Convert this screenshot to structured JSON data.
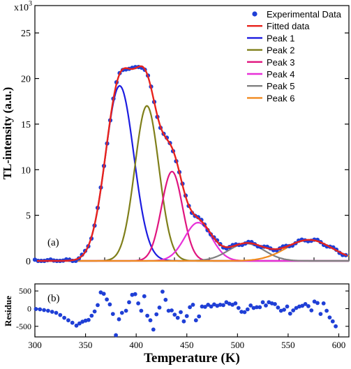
{
  "chart_data": [
    {
      "type": "line",
      "panel_label": "(a)",
      "ylabel": "TL-intensity (a.u.)",
      "y_multiplier_label": "x10",
      "y_multiplier_exp": "3",
      "xlim": [
        300,
        600
      ],
      "ylim": [
        0,
        28
      ],
      "y_ticks": [
        0,
        5,
        10,
        15,
        20,
        25
      ],
      "grid": false,
      "legend_position": "top-right",
      "legend": [
        {
          "label": "Experimental Data",
          "color": "#1f3fd6",
          "marker": "dot"
        },
        {
          "label": "Fitted data",
          "color": "#e8231c",
          "marker": "line"
        },
        {
          "label": "Peak 1",
          "color": "#1c1ce0",
          "marker": "line"
        },
        {
          "label": "Peak 2",
          "color": "#7f7f1a",
          "marker": "line"
        },
        {
          "label": "Peak 3",
          "color": "#e0157f",
          "marker": "line"
        },
        {
          "label": "Peak 4",
          "color": "#e830d8",
          "marker": "line"
        },
        {
          "label": "Peak 5",
          "color": "#808080",
          "marker": "line"
        },
        {
          "label": "Peak 6",
          "color": "#f08a1e",
          "marker": "line"
        }
      ],
      "peaks": [
        {
          "name": "Peak 1",
          "center": 381,
          "height": 19.2,
          "width": 13.5,
          "color": "#1c1ce0"
        },
        {
          "name": "Peak 2",
          "center": 407,
          "height": 17.0,
          "width": 11.5,
          "color": "#7f7f1a"
        },
        {
          "name": "Peak 3",
          "center": 431,
          "height": 9.8,
          "width": 10.0,
          "color": "#e0157f"
        },
        {
          "name": "Peak 4",
          "center": 456,
          "height": 4.2,
          "width": 13.0,
          "color": "#e830d8"
        },
        {
          "name": "Peak 5",
          "center": 502,
          "height": 1.9,
          "width": 17.0,
          "color": "#808080"
        },
        {
          "name": "Peak 6",
          "center": 562,
          "height": 2.3,
          "width": 22.0,
          "color": "#f08a1e"
        }
      ],
      "experimental_x_start": 300,
      "experimental_x_end": 598,
      "experimental_step": 3
    },
    {
      "type": "scatter",
      "panel_label": "(b)",
      "ylabel": "Residue",
      "xlabel": "Temperature (K)",
      "xlim": [
        300,
        610
      ],
      "ylim": [
        -800,
        700
      ],
      "y_ticks": [
        -500,
        0,
        500
      ],
      "x_ticks": [
        300,
        350,
        400,
        450,
        500,
        550,
        600
      ],
      "color": "#1f3fd6",
      "points": [
        [
          301,
          -10
        ],
        [
          305,
          -20
        ],
        [
          309,
          -40
        ],
        [
          313,
          -60
        ],
        [
          317,
          -90
        ],
        [
          321,
          -120
        ],
        [
          325,
          -180
        ],
        [
          329,
          -260
        ],
        [
          333,
          -330
        ],
        [
          337,
          -400
        ],
        [
          341,
          -480
        ],
        [
          344,
          -420
        ],
        [
          347,
          -370
        ],
        [
          350,
          -340
        ],
        [
          353,
          -320
        ],
        [
          356,
          -200
        ],
        [
          359,
          -80
        ],
        [
          362,
          100
        ],
        [
          365,
          460
        ],
        [
          368,
          420
        ],
        [
          371,
          260
        ],
        [
          374,
          120
        ],
        [
          377,
          -150
        ],
        [
          380,
          -750
        ],
        [
          383,
          -300
        ],
        [
          386,
          -120
        ],
        [
          390,
          -60
        ],
        [
          393,
          180
        ],
        [
          396,
          390
        ],
        [
          399,
          410
        ],
        [
          402,
          150
        ],
        [
          405,
          -60
        ],
        [
          408,
          350
        ],
        [
          411,
          -200
        ],
        [
          414,
          -330
        ],
        [
          417,
          -590
        ],
        [
          420,
          -160
        ],
        [
          423,
          30
        ],
        [
          426,
          480
        ],
        [
          429,
          250
        ],
        [
          432,
          -60
        ],
        [
          435,
          -50
        ],
        [
          438,
          -170
        ],
        [
          441,
          -260
        ],
        [
          444,
          -100
        ],
        [
          447,
          -360
        ],
        [
          450,
          -210
        ],
        [
          453,
          40
        ],
        [
          456,
          110
        ],
        [
          459,
          -330
        ],
        [
          462,
          -220
        ],
        [
          465,
          60
        ],
        [
          468,
          50
        ],
        [
          471,
          110
        ],
        [
          474,
          60
        ],
        [
          477,
          120
        ],
        [
          480,
          80
        ],
        [
          483,
          110
        ],
        [
          486,
          100
        ],
        [
          489,
          180
        ],
        [
          492,
          140
        ],
        [
          495,
          110
        ],
        [
          498,
          150
        ],
        [
          501,
          20
        ],
        [
          504,
          -90
        ],
        [
          507,
          -100
        ],
        [
          510,
          -20
        ],
        [
          513,
          90
        ],
        [
          516,
          20
        ],
        [
          519,
          40
        ],
        [
          522,
          40
        ],
        [
          525,
          180
        ],
        [
          528,
          90
        ],
        [
          531,
          180
        ],
        [
          534,
          150
        ],
        [
          537,
          130
        ],
        [
          540,
          30
        ],
        [
          543,
          -60
        ],
        [
          546,
          -30
        ],
        [
          549,
          60
        ],
        [
          552,
          -140
        ],
        [
          555,
          -50
        ],
        [
          558,
          20
        ],
        [
          561,
          60
        ],
        [
          564,
          80
        ],
        [
          567,
          130
        ],
        [
          570,
          70
        ],
        [
          573,
          -50
        ],
        [
          576,
          200
        ],
        [
          579,
          160
        ],
        [
          582,
          -150
        ],
        [
          585,
          150
        ],
        [
          588,
          -60
        ],
        [
          591,
          -250
        ],
        [
          594,
          -360
        ],
        [
          597,
          -500
        ]
      ]
    }
  ],
  "colors": {
    "fitted": "#e8231c",
    "experimental": "#1f3fd6",
    "axis": "#000000"
  }
}
